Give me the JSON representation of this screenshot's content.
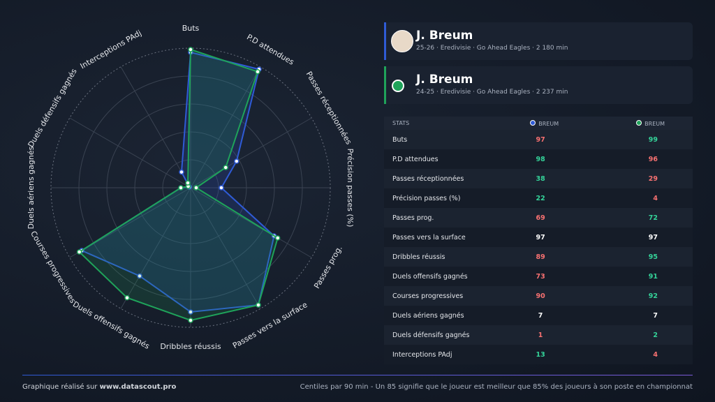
{
  "chart_data": {
    "type": "radar",
    "categories": [
      "Buts",
      "P.D attendues",
      "Passes réceptionnées",
      "Précision passes (%)",
      "Passes prog.",
      "Passes vers la surface",
      "Dribbles réussis",
      "Duels offensifs gagnés",
      "Courses progressives",
      "Duels aériens gagnés",
      "Duels défensifs gagnés",
      "Interceptions PAdj"
    ],
    "series": [
      {
        "name": "BREUM",
        "color": "#2f5bd6",
        "values": [
          97,
          98,
          38,
          22,
          69,
          97,
          89,
          73,
          90,
          7,
          1,
          13
        ]
      },
      {
        "name": "BREUM",
        "color": "#1fa35a",
        "values": [
          99,
          96,
          29,
          4,
          72,
          97,
          95,
          91,
          92,
          7,
          2,
          4
        ]
      }
    ],
    "rlim": [
      0,
      100
    ],
    "rticks": [
      20,
      40,
      60,
      80,
      100
    ],
    "grid": true
  },
  "players": [
    {
      "name": "J. Breum",
      "info": "25-26 · Eredivisie · Go Ahead Eagles · 2 180 min",
      "color": "#2f5bd6"
    },
    {
      "name": "J. Breum",
      "info": "24-25 · Eredivisie · Go Ahead Eagles · 2 237 min",
      "color": "#1fa35a"
    }
  ],
  "table": {
    "header": "STATS"
  },
  "footer": {
    "credit": "Graphique réalisé sur",
    "site": "www.datascout.pro",
    "note": "Centiles par 90 min - Un 85 signifie que le joueur est meilleur que 85% des joueurs à son poste en championnat"
  }
}
